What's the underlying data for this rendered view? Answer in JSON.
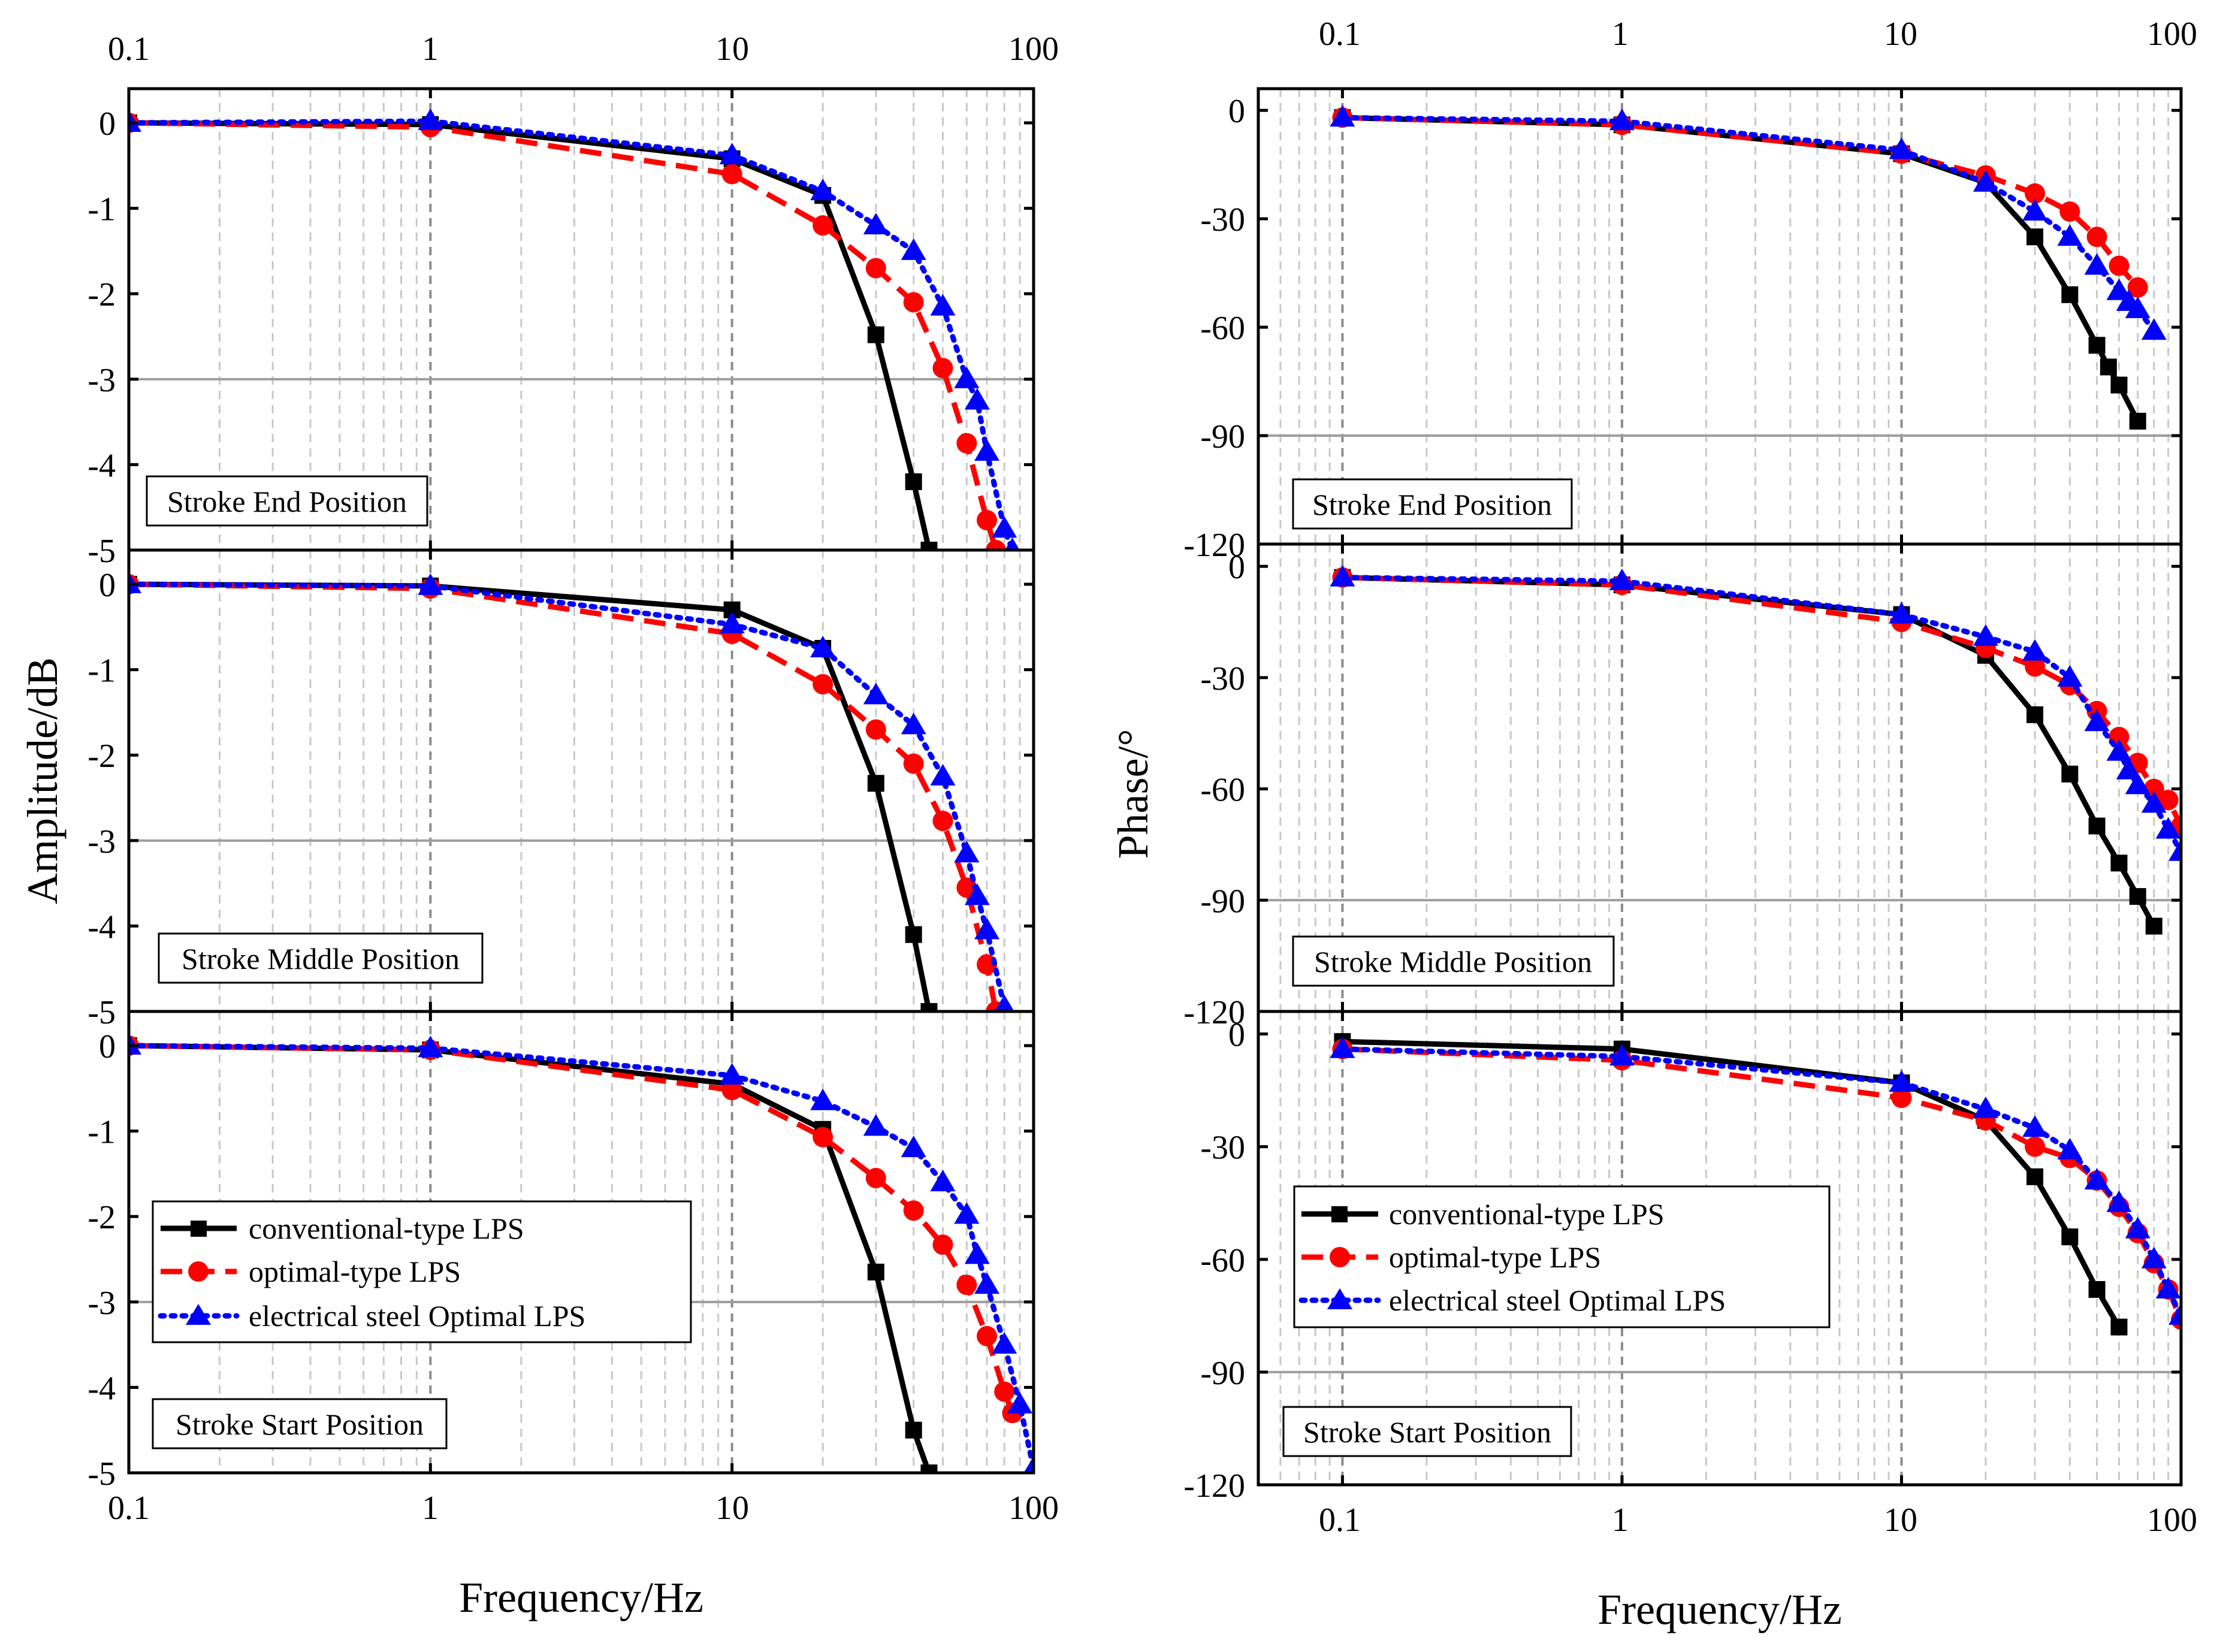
{
  "figure": {
    "x_title": "Frequency/Hz",
    "amp_y_title": "Amplitude/dB",
    "phase_y_title": "Phase/°",
    "x_tick_labels": [
      "0.1",
      "1",
      "10",
      "100"
    ],
    "colors": {
      "conventional": "#000000",
      "optimal": "#ff0000",
      "electrical": "#0000ff",
      "ref_line": "#9e9e9e",
      "grid": "#c8c8c8"
    }
  },
  "chart_data": [
    {
      "id": "amp-end",
      "type": "line",
      "xscale": "log",
      "xlim": [
        0.1,
        100
      ],
      "ylim": [
        -5,
        0.4
      ],
      "yticks": [
        0,
        -1,
        -2,
        -3,
        -4,
        -5
      ],
      "ref_line": -3,
      "position_label": "Stroke End Position",
      "series": [
        {
          "key": "conventional",
          "name": "conventional-type LPS",
          "marker": "square",
          "dash": "solid",
          "x": [
            0.1,
            1,
            10,
            20,
            30,
            40,
            45
          ],
          "y": [
            0,
            -0.02,
            -0.42,
            -0.85,
            -2.48,
            -4.2,
            -5.0
          ]
        },
        {
          "key": "optimal",
          "name": "optimal-type LPS",
          "marker": "circle",
          "dash": "dash",
          "x": [
            0.1,
            1,
            10,
            20,
            30,
            40,
            50,
            60,
            70,
            75
          ],
          "y": [
            0,
            -0.05,
            -0.6,
            -1.2,
            -1.7,
            -2.1,
            -2.87,
            -3.75,
            -4.65,
            -5.0
          ]
        },
        {
          "key": "electrical",
          "name": "electrical steel Optimal LPS",
          "marker": "triangle",
          "dash": "dot",
          "x": [
            0.1,
            1,
            10,
            20,
            30,
            40,
            50,
            60,
            65,
            70,
            80,
            85
          ],
          "y": [
            0,
            0.02,
            -0.38,
            -0.8,
            -1.2,
            -1.5,
            -2.15,
            -3.0,
            -3.25,
            -3.85,
            -4.75,
            -5.0
          ]
        }
      ]
    },
    {
      "id": "amp-middle",
      "type": "line",
      "xscale": "log",
      "xlim": [
        0.1,
        100
      ],
      "ylim": [
        -5,
        0.4
      ],
      "yticks": [
        0,
        -1,
        -2,
        -3,
        -4,
        -5
      ],
      "ref_line": -3,
      "position_label": "Stroke Middle Position",
      "series": [
        {
          "key": "conventional",
          "name": "conventional-type LPS",
          "marker": "square",
          "dash": "solid",
          "x": [
            0.1,
            1,
            10,
            20,
            30,
            40,
            45
          ],
          "y": [
            0,
            -0.02,
            -0.3,
            -0.75,
            -2.33,
            -4.1,
            -5.0
          ]
        },
        {
          "key": "optimal",
          "name": "optimal-type LPS",
          "marker": "circle",
          "dash": "dash",
          "x": [
            0.1,
            1,
            10,
            20,
            30,
            40,
            50,
            60,
            70,
            75
          ],
          "y": [
            0,
            -0.05,
            -0.58,
            -1.17,
            -1.7,
            -2.1,
            -2.77,
            -3.55,
            -4.45,
            -5.0
          ]
        },
        {
          "key": "electrical",
          "name": "electrical steel Optimal LPS",
          "marker": "triangle",
          "dash": "dot",
          "x": [
            0.1,
            1,
            10,
            20,
            30,
            40,
            50,
            60,
            65,
            70,
            80
          ],
          "y": [
            0,
            -0.02,
            -0.47,
            -0.75,
            -1.3,
            -1.65,
            -2.25,
            -3.15,
            -3.65,
            -4.05,
            -4.95
          ]
        }
      ]
    },
    {
      "id": "amp-start",
      "type": "line",
      "xscale": "log",
      "xlim": [
        0.1,
        100
      ],
      "ylim": [
        -5,
        0.4
      ],
      "yticks": [
        0,
        -1,
        -2,
        -3,
        -4,
        -5
      ],
      "ref_line": -3,
      "position_label": "Stroke Start Position",
      "series": [
        {
          "key": "conventional",
          "name": "conventional-type LPS",
          "marker": "square",
          "dash": "solid",
          "x": [
            0.1,
            1,
            10,
            20,
            30,
            40,
            45
          ],
          "y": [
            0,
            -0.05,
            -0.45,
            -0.98,
            -2.65,
            -4.5,
            -5.0
          ]
        },
        {
          "key": "optimal",
          "name": "optimal-type LPS",
          "marker": "circle",
          "dash": "dash",
          "x": [
            0.1,
            1,
            10,
            20,
            30,
            40,
            50,
            60,
            70,
            80,
            85
          ],
          "y": [
            0,
            -0.05,
            -0.52,
            -1.07,
            -1.55,
            -1.93,
            -2.33,
            -2.8,
            -3.4,
            -4.05,
            -4.3
          ]
        },
        {
          "key": "electrical",
          "name": "electrical steel Optimal LPS",
          "marker": "triangle",
          "dash": "dot",
          "x": [
            0.1,
            1,
            10,
            20,
            30,
            40,
            50,
            60,
            65,
            70,
            80,
            90,
            100
          ],
          "y": [
            0,
            -0.03,
            -0.35,
            -0.65,
            -0.95,
            -1.2,
            -1.6,
            -1.98,
            -2.45,
            -2.8,
            -3.5,
            -4.2,
            -4.95
          ]
        }
      ]
    },
    {
      "id": "phase-end",
      "type": "line",
      "xscale": "log",
      "xlim": [
        0.05,
        100
      ],
      "ylim": [
        -120,
        6
      ],
      "yticks": [
        0,
        -30,
        -60,
        -90,
        -120
      ],
      "ref_line": -90,
      "position_label": "Stroke End Position",
      "series": [
        {
          "key": "conventional",
          "name": "conventional-type LPS",
          "marker": "square",
          "dash": "solid",
          "x": [
            0.1,
            1,
            10,
            20,
            30,
            40,
            50,
            55,
            60,
            70
          ],
          "y": [
            -2,
            -4,
            -12,
            -20,
            -35,
            -51,
            -65,
            -71,
            -76,
            -86
          ]
        },
        {
          "key": "optimal",
          "name": "optimal-type LPS",
          "marker": "circle",
          "dash": "dash",
          "x": [
            0.1,
            1,
            10,
            20,
            30,
            40,
            50,
            60,
            70
          ],
          "y": [
            -2,
            -4,
            -12,
            -18,
            -23,
            -28,
            -35,
            -43,
            -49
          ]
        },
        {
          "key": "electrical",
          "name": "electrical steel Optimal LPS",
          "marker": "triangle",
          "dash": "dot",
          "x": [
            0.1,
            1,
            10,
            20,
            30,
            40,
            50,
            60,
            65,
            70,
            80
          ],
          "y": [
            -2,
            -3,
            -11,
            -20,
            -28,
            -35,
            -43,
            -50,
            -53,
            -55,
            -61
          ]
        }
      ]
    },
    {
      "id": "phase-middle",
      "type": "line",
      "xscale": "log",
      "xlim": [
        0.05,
        100
      ],
      "ylim": [
        -120,
        6
      ],
      "yticks": [
        0,
        -30,
        -60,
        -90,
        -120
      ],
      "ref_line": -90,
      "position_label": "Stroke Middle Position",
      "series": [
        {
          "key": "conventional",
          "name": "conventional-type LPS",
          "marker": "square",
          "dash": "solid",
          "x": [
            0.1,
            1,
            10,
            20,
            30,
            40,
            50,
            60,
            70,
            80
          ],
          "y": [
            -3,
            -5,
            -13,
            -24,
            -40,
            -56,
            -70,
            -80,
            -89,
            -97
          ]
        },
        {
          "key": "optimal",
          "name": "optimal-type LPS",
          "marker": "circle",
          "dash": "dash",
          "x": [
            0.1,
            1,
            10,
            20,
            30,
            40,
            50,
            60,
            70,
            80,
            90,
            100
          ],
          "y": [
            -3,
            -5,
            -15,
            -22,
            -27,
            -32,
            -39,
            -46,
            -53,
            -60,
            -63,
            -70
          ]
        },
        {
          "key": "electrical",
          "name": "electrical steel Optimal LPS",
          "marker": "triangle",
          "dash": "dot",
          "x": [
            0.1,
            1,
            10,
            20,
            30,
            40,
            50,
            60,
            65,
            70,
            80,
            90,
            100
          ],
          "y": [
            -3,
            -4,
            -13,
            -19,
            -23,
            -30,
            -42,
            -50,
            -55,
            -59,
            -64,
            -71,
            -77
          ]
        }
      ]
    },
    {
      "id": "phase-start",
      "type": "line",
      "xscale": "log",
      "xlim": [
        0.05,
        100
      ],
      "ylim": [
        -120,
        6
      ],
      "yticks": [
        0,
        -30,
        -60,
        -90,
        -120
      ],
      "ref_line": -90,
      "position_label": "Stroke Start Position",
      "series": [
        {
          "key": "conventional",
          "name": "conventional-type LPS",
          "marker": "square",
          "dash": "solid",
          "x": [
            0.1,
            1,
            10,
            20,
            30,
            40,
            50,
            60
          ],
          "y": [
            -2,
            -4,
            -13,
            -23,
            -38,
            -54,
            -68,
            -78
          ]
        },
        {
          "key": "optimal",
          "name": "optimal-type LPS",
          "marker": "circle",
          "dash": "dash",
          "x": [
            0.1,
            1,
            10,
            20,
            30,
            40,
            50,
            60,
            70,
            80,
            90,
            100
          ],
          "y": [
            -4,
            -7,
            -17,
            -23,
            -30,
            -33,
            -39,
            -46,
            -53,
            -61,
            -68,
            -76
          ]
        },
        {
          "key": "electrical",
          "name": "electrical steel Optimal LPS",
          "marker": "triangle",
          "dash": "dot",
          "x": [
            0.1,
            1,
            10,
            20,
            30,
            40,
            50,
            60,
            70,
            80,
            90,
            100
          ],
          "y": [
            -4,
            -6,
            -13,
            -20,
            -25,
            -31,
            -39,
            -45,
            -52,
            -60,
            -68,
            -75
          ]
        }
      ]
    }
  ],
  "legends": {
    "amp": [
      "conventional-type LPS",
      "optimal-type LPS",
      "electrical steel Optimal LPS"
    ],
    "phase": [
      "conventional-type LPS",
      "optimal-type LPS",
      "electrical steel Optimal LPS"
    ]
  }
}
